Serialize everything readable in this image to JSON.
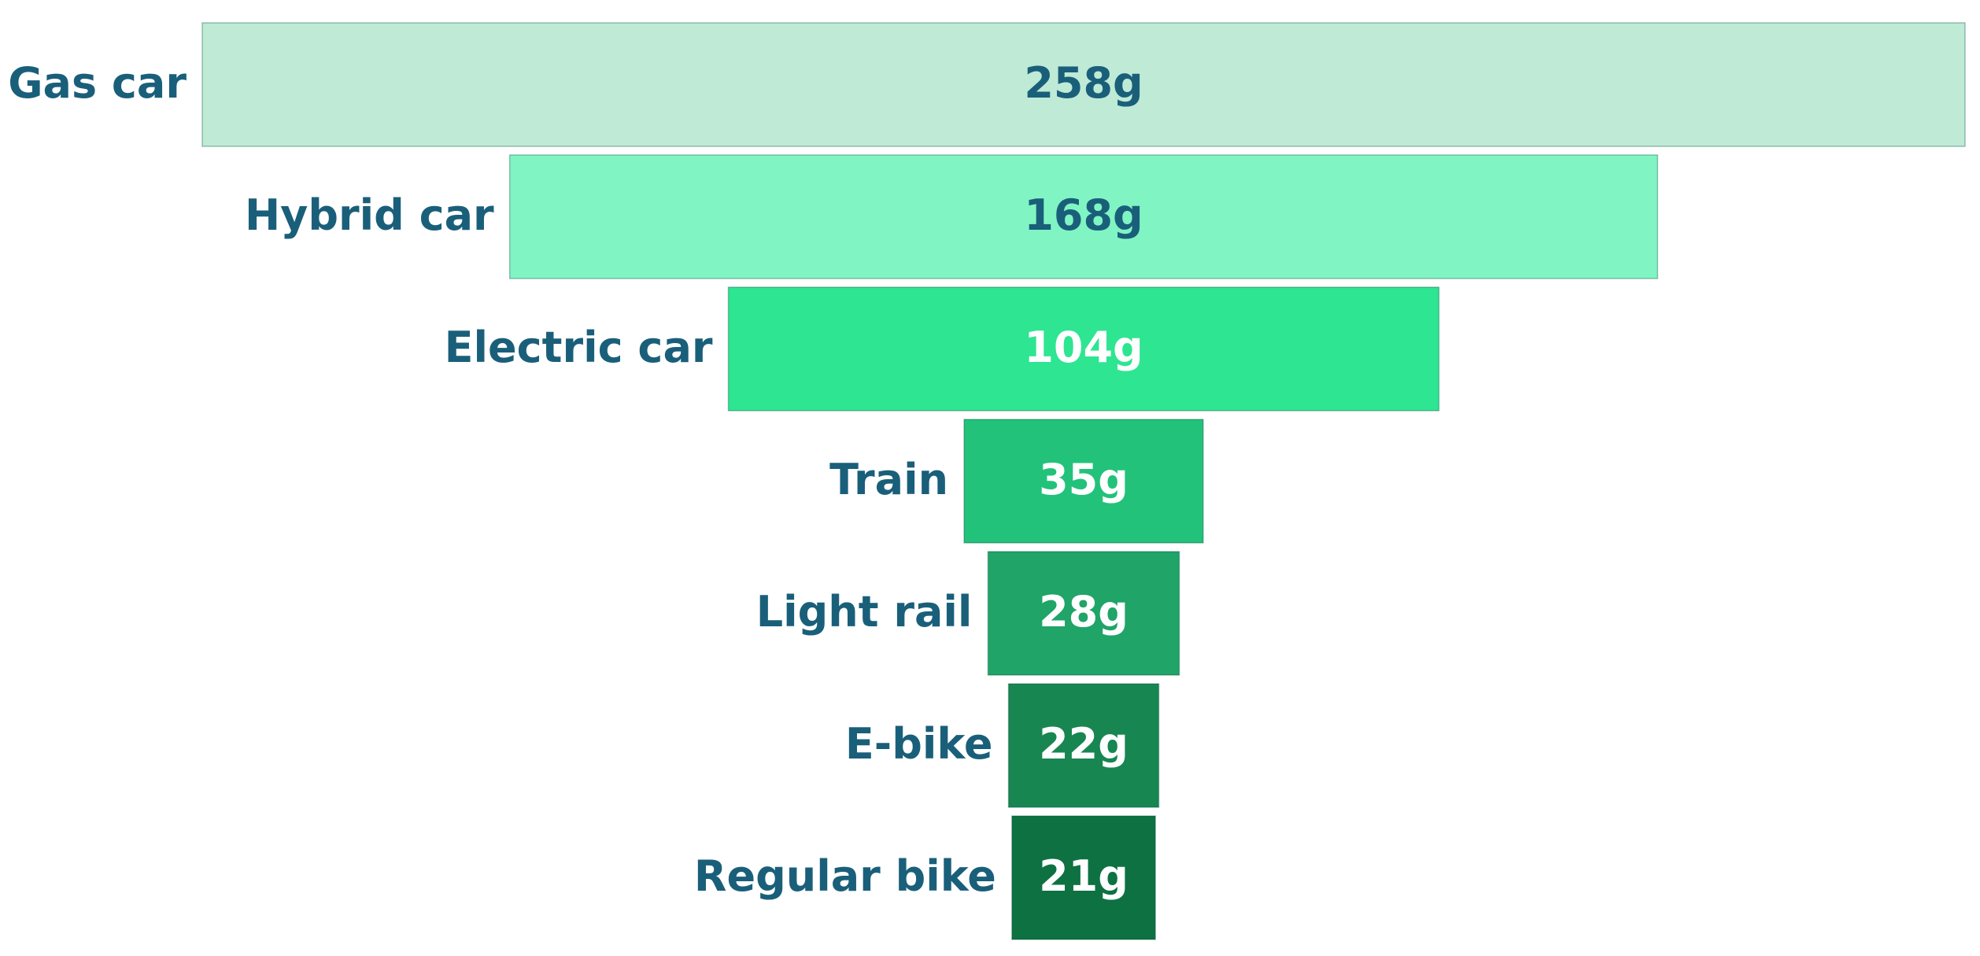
{
  "chart_data": {
    "type": "funnel",
    "categories": [
      "Gas car",
      "Hybrid car",
      "Electric car",
      "Train",
      "Light rail",
      "E-bike",
      "Regular bike"
    ],
    "values": [
      258,
      168,
      104,
      35,
      28,
      22,
      21
    ],
    "value_labels": [
      "258g",
      "168g",
      "104g",
      "35g",
      "28g",
      "22g",
      "21g"
    ],
    "colors": [
      "#bfead6",
      "#80f5c3",
      "#2ee592",
      "#22c27a",
      "#20a468",
      "#188651",
      "#0e7142"
    ],
    "value_label_colors": [
      "#1a5f7a",
      "#1a5f7a",
      "#ffffff",
      "#ffffff",
      "#ffffff",
      "#ffffff",
      "#ffffff"
    ],
    "category_label_color": "#1a5f7a"
  }
}
